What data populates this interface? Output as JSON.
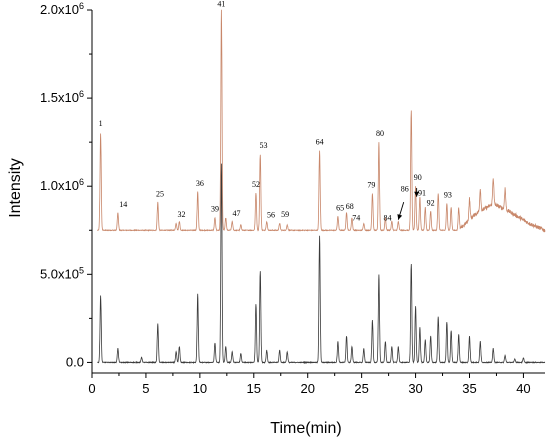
{
  "chart_data": {
    "type": "line",
    "xlabel": "Time(min)",
    "ylabel": "Intensity",
    "xlim": [
      0,
      42
    ],
    "x_ticks": [
      "0",
      "5",
      "10",
      "15",
      "20",
      "25",
      "30",
      "35",
      "40"
    ],
    "x_tick_values": [
      0,
      5,
      10,
      15,
      20,
      25,
      30,
      35,
      40
    ],
    "y_ticks": [
      "0.0",
      "5.0x10^5",
      "1.0x10^6",
      "1.5x10^6",
      "2.0x10^6"
    ],
    "y_tick_values": [
      0,
      500000,
      1000000,
      1500000,
      2000000
    ],
    "ylim": [
      -60000,
      2000000
    ],
    "grid": false,
    "colors": {
      "upper": "#c8876a",
      "lower": "#3a3a3a"
    },
    "series": [
      {
        "baseline": 750000,
        "peaks": [
          [
            0.8,
            1300000
          ],
          [
            2.4,
            850000
          ],
          [
            6.1,
            910000
          ],
          [
            7.8,
            790000
          ],
          [
            8.1,
            800000
          ],
          [
            9.8,
            970000
          ],
          [
            11.4,
            820000
          ],
          [
            12.0,
            2000000
          ],
          [
            12.4,
            820000
          ],
          [
            13.0,
            800000
          ],
          [
            13.8,
            780000
          ],
          [
            15.2,
            960000
          ],
          [
            15.6,
            1180000
          ],
          [
            16.2,
            800000
          ],
          [
            17.4,
            790000
          ],
          [
            18.1,
            780000
          ],
          [
            21.1,
            1200000
          ],
          [
            22.8,
            830000
          ],
          [
            23.6,
            850000
          ],
          [
            24.1,
            820000
          ],
          [
            25.2,
            790000
          ],
          [
            26.0,
            960000
          ],
          [
            26.6,
            1250000
          ],
          [
            27.2,
            820000
          ],
          [
            27.8,
            800000
          ],
          [
            28.4,
            800000
          ],
          [
            29.6,
            1430000
          ],
          [
            30.0,
            1000000
          ],
          [
            30.4,
            940000
          ],
          [
            30.9,
            880000
          ],
          [
            31.4,
            860000
          ],
          [
            32.1,
            960000
          ],
          [
            32.9,
            900000
          ],
          [
            33.3,
            880000
          ],
          [
            34.0,
            880000
          ],
          [
            35.0,
            870000
          ],
          [
            36.0,
            880000
          ],
          [
            37.2,
            900000
          ],
          [
            38.3,
            870000
          ]
        ],
        "hump": [
          [
            34,
            0
          ],
          [
            35.5,
            90000
          ],
          [
            37.2,
            150000
          ],
          [
            38.6,
            110000
          ],
          [
            40.5,
            40000
          ],
          [
            42,
            0
          ]
        ]
      },
      {
        "baseline": 0,
        "peaks": [
          [
            0.8,
            380000
          ],
          [
            2.4,
            80000
          ],
          [
            4.6,
            30000
          ],
          [
            6.1,
            220000
          ],
          [
            7.8,
            60000
          ],
          [
            8.1,
            90000
          ],
          [
            9.8,
            390000
          ],
          [
            11.4,
            110000
          ],
          [
            12.0,
            1130000
          ],
          [
            12.4,
            90000
          ],
          [
            13.0,
            60000
          ],
          [
            13.8,
            50000
          ],
          [
            15.2,
            330000
          ],
          [
            15.6,
            520000
          ],
          [
            16.2,
            70000
          ],
          [
            17.4,
            70000
          ],
          [
            18.1,
            60000
          ],
          [
            21.1,
            720000
          ],
          [
            22.8,
            120000
          ],
          [
            23.6,
            150000
          ],
          [
            24.1,
            90000
          ],
          [
            25.2,
            80000
          ],
          [
            26.0,
            240000
          ],
          [
            26.6,
            500000
          ],
          [
            27.2,
            120000
          ],
          [
            27.8,
            90000
          ],
          [
            28.4,
            90000
          ],
          [
            29.6,
            560000
          ],
          [
            30.0,
            320000
          ],
          [
            30.4,
            200000
          ],
          [
            30.9,
            130000
          ],
          [
            31.4,
            150000
          ],
          [
            32.1,
            260000
          ],
          [
            32.9,
            230000
          ],
          [
            33.3,
            180000
          ],
          [
            34.0,
            160000
          ],
          [
            35.0,
            150000
          ],
          [
            36.0,
            120000
          ],
          [
            37.2,
            80000
          ],
          [
            38.3,
            40000
          ],
          [
            39.2,
            20000
          ],
          [
            40.0,
            25000
          ]
        ],
        "hump": []
      }
    ],
    "peak_labels": [
      {
        "label": "1",
        "x": 0.8,
        "y": 1330000
      },
      {
        "label": "14",
        "x": 2.9,
        "y": 870000
      },
      {
        "label": "25",
        "x": 6.3,
        "y": 930000
      },
      {
        "label": "32",
        "x": 8.3,
        "y": 815000
      },
      {
        "label": "36",
        "x": 10.0,
        "y": 990000
      },
      {
        "label": "39",
        "x": 11.4,
        "y": 845000
      },
      {
        "label": "41",
        "x": 12.0,
        "y": 2010000
      },
      {
        "label": "47",
        "x": 13.4,
        "y": 820000
      },
      {
        "label": "52",
        "x": 15.2,
        "y": 985000
      },
      {
        "label": "53",
        "x": 15.9,
        "y": 1205000
      },
      {
        "label": "56",
        "x": 16.6,
        "y": 810000
      },
      {
        "label": "59",
        "x": 17.9,
        "y": 815000
      },
      {
        "label": "64",
        "x": 21.1,
        "y": 1225000
      },
      {
        "label": "65",
        "x": 23.0,
        "y": 850000
      },
      {
        "label": "68",
        "x": 23.9,
        "y": 860000
      },
      {
        "label": "74",
        "x": 24.5,
        "y": 795000
      },
      {
        "label": "79",
        "x": 25.9,
        "y": 980000
      },
      {
        "label": "80",
        "x": 26.7,
        "y": 1275000
      },
      {
        "label": "84",
        "x": 27.4,
        "y": 795000
      },
      {
        "label": "86",
        "x": 29.0,
        "y": 960000
      },
      {
        "label": "90",
        "x": 30.2,
        "y": 1025000
      },
      {
        "label": "91",
        "x": 30.6,
        "y": 935000
      },
      {
        "label": "92",
        "x": 31.4,
        "y": 880000
      },
      {
        "label": "93",
        "x": 33.0,
        "y": 925000
      }
    ],
    "arrows": [
      {
        "label": "86",
        "from": [
          28.9,
          910000
        ],
        "to": [
          28.4,
          810000
        ]
      },
      {
        "label": "90",
        "from": [
          30.1,
          990000
        ],
        "to": [
          30.1,
          940000
        ]
      }
    ]
  }
}
